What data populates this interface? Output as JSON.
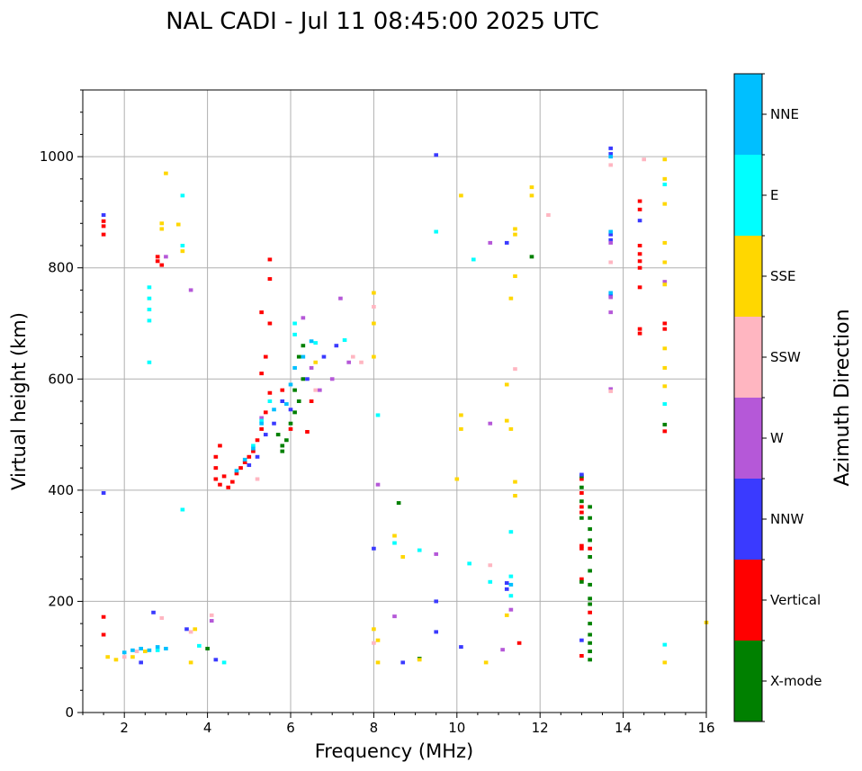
{
  "chart_data": {
    "type": "scatter",
    "title": "NAL CADI - Jul 11 08:45:00 2025 UTC",
    "xlabel": "Frequency (MHz)",
    "ylabel": "Virtual height (km)",
    "xlim": [
      1,
      16
    ],
    "ylim": [
      0,
      1120
    ],
    "xticks": [
      2,
      4,
      6,
      8,
      10,
      12,
      14,
      16
    ],
    "yticks": [
      0,
      200,
      400,
      600,
      800,
      1000
    ],
    "grid": true,
    "colorbar": {
      "label": "Azimuth Direction",
      "categories": [
        {
          "name": "X-mode",
          "color": "#008000"
        },
        {
          "name": "Vertical",
          "color": "#ff0000"
        },
        {
          "name": "NNW",
          "color": "#3a3aff"
        },
        {
          "name": "W",
          "color": "#b558d8"
        },
        {
          "name": "SSW",
          "color": "#ffb6c1"
        },
        {
          "name": "SSE",
          "color": "#ffd700"
        },
        {
          "name": "E",
          "color": "#00ffff"
        },
        {
          "name": "NNE",
          "color": "#00bfff"
        }
      ]
    },
    "series": [
      {
        "name": "Vertical",
        "points": [
          [
            1.5,
            172
          ],
          [
            1.5,
            140
          ],
          [
            1.5,
            860
          ],
          [
            1.5,
            875
          ],
          [
            1.5,
            884
          ],
          [
            2.8,
            812
          ],
          [
            2.8,
            820
          ],
          [
            2.9,
            805
          ],
          [
            4.2,
            420
          ],
          [
            4.2,
            440
          ],
          [
            4.2,
            460
          ],
          [
            4.3,
            480
          ],
          [
            4.3,
            410
          ],
          [
            4.4,
            425
          ],
          [
            4.5,
            405
          ],
          [
            4.6,
            415
          ],
          [
            4.7,
            430
          ],
          [
            4.8,
            440
          ],
          [
            4.9,
            450
          ],
          [
            5.0,
            460
          ],
          [
            5.1,
            470
          ],
          [
            5.2,
            490
          ],
          [
            5.3,
            510
          ],
          [
            5.4,
            540
          ],
          [
            5.5,
            575
          ],
          [
            5.3,
            610
          ],
          [
            5.4,
            640
          ],
          [
            5.5,
            700
          ],
          [
            5.3,
            720
          ],
          [
            5.5,
            780
          ],
          [
            5.5,
            815
          ],
          [
            5.8,
            580
          ],
          [
            6.0,
            510
          ],
          [
            6.4,
            505
          ],
          [
            6.5,
            560
          ],
          [
            13.0,
            420
          ],
          [
            13.0,
            395
          ],
          [
            13.0,
            370
          ],
          [
            13.0,
            360
          ],
          [
            13.0,
            300
          ],
          [
            13.0,
            295
          ],
          [
            13.0,
            240
          ],
          [
            13.0,
            102
          ],
          [
            13.2,
            295
          ],
          [
            13.2,
            180
          ],
          [
            14.4,
            920
          ],
          [
            14.4,
            905
          ],
          [
            14.4,
            840
          ],
          [
            14.4,
            825
          ],
          [
            14.4,
            812
          ],
          [
            14.4,
            800
          ],
          [
            14.4,
            765
          ],
          [
            14.4,
            690
          ],
          [
            14.4,
            682
          ],
          [
            15.0,
            700
          ],
          [
            15.0,
            690
          ],
          [
            15.0,
            506
          ],
          [
            11.5,
            125
          ]
        ]
      },
      {
        "name": "X-mode",
        "points": [
          [
            13.2,
            370
          ],
          [
            13.2,
            350
          ],
          [
            13.2,
            330
          ],
          [
            13.2,
            310
          ],
          [
            13.2,
            280
          ],
          [
            13.2,
            255
          ],
          [
            13.2,
            230
          ],
          [
            13.2,
            205
          ],
          [
            13.2,
            195
          ],
          [
            13.2,
            160
          ],
          [
            13.2,
            140
          ],
          [
            13.2,
            125
          ],
          [
            13.2,
            110
          ],
          [
            13.2,
            95
          ],
          [
            13.0,
            425
          ],
          [
            13.0,
            405
          ],
          [
            13.0,
            380
          ],
          [
            13.0,
            350
          ],
          [
            13.0,
            235
          ],
          [
            5.8,
            470
          ],
          [
            5.8,
            480
          ],
          [
            5.9,
            490
          ],
          [
            5.7,
            500
          ],
          [
            6.0,
            520
          ],
          [
            6.1,
            540
          ],
          [
            6.2,
            560
          ],
          [
            6.1,
            580
          ],
          [
            6.3,
            600
          ],
          [
            6.2,
            640
          ],
          [
            6.3,
            660
          ],
          [
            4.0,
            115
          ],
          [
            8.6,
            377
          ],
          [
            9.1,
            97
          ],
          [
            11.8,
            820
          ],
          [
            15.0,
            518
          ]
        ]
      },
      {
        "name": "NNW",
        "points": [
          [
            1.5,
            395
          ],
          [
            1.5,
            895
          ],
          [
            2.4,
            90
          ],
          [
            2.7,
            180
          ],
          [
            3.5,
            150
          ],
          [
            4.2,
            95
          ],
          [
            5.0,
            445
          ],
          [
            5.2,
            460
          ],
          [
            5.4,
            500
          ],
          [
            5.6,
            520
          ],
          [
            5.8,
            560
          ],
          [
            6.0,
            545
          ],
          [
            6.4,
            600
          ],
          [
            6.8,
            640
          ],
          [
            7.1,
            660
          ],
          [
            8.0,
            295
          ],
          [
            8.7,
            90
          ],
          [
            9.5,
            1003
          ],
          [
            9.5,
            200
          ],
          [
            9.5,
            145
          ],
          [
            10.1,
            118
          ],
          [
            11.2,
            233
          ],
          [
            11.2,
            222
          ],
          [
            11.2,
            845
          ],
          [
            13.0,
            428
          ],
          [
            13.0,
            130
          ],
          [
            13.7,
            1015
          ],
          [
            13.7,
            1005
          ],
          [
            13.7,
            860
          ],
          [
            13.7,
            850
          ],
          [
            13.7,
            750
          ],
          [
            14.4,
            885
          ]
        ]
      },
      {
        "name": "W",
        "points": [
          [
            3.0,
            820
          ],
          [
            3.6,
            760
          ],
          [
            4.1,
            165
          ],
          [
            5.3,
            530
          ],
          [
            6.3,
            710
          ],
          [
            6.5,
            620
          ],
          [
            6.7,
            580
          ],
          [
            7.0,
            600
          ],
          [
            7.2,
            745
          ],
          [
            7.4,
            630
          ],
          [
            8.1,
            410
          ],
          [
            8.5,
            173
          ],
          [
            9.5,
            285
          ],
          [
            10.8,
            520
          ],
          [
            10.8,
            845
          ],
          [
            11.3,
            185
          ],
          [
            11.1,
            113
          ],
          [
            13.7,
            720
          ],
          [
            13.7,
            582
          ],
          [
            13.7,
            747
          ],
          [
            13.7,
            845
          ],
          [
            15.0,
            775
          ]
        ]
      },
      {
        "name": "SSW",
        "points": [
          [
            2.0,
            100
          ],
          [
            2.3,
            110
          ],
          [
            2.9,
            170
          ],
          [
            3.6,
            145
          ],
          [
            4.1,
            175
          ],
          [
            5.2,
            420
          ],
          [
            6.6,
            580
          ],
          [
            7.5,
            640
          ],
          [
            7.7,
            630
          ],
          [
            8.0,
            730
          ],
          [
            8.0,
            125
          ],
          [
            10.8,
            265
          ],
          [
            11.4,
            618
          ],
          [
            12.2,
            895
          ],
          [
            13.7,
            985
          ],
          [
            13.7,
            578
          ],
          [
            13.7,
            810
          ],
          [
            14.5,
            995
          ]
        ]
      },
      {
        "name": "SSE",
        "points": [
          [
            1.6,
            100
          ],
          [
            1.8,
            95
          ],
          [
            2.2,
            100
          ],
          [
            2.5,
            110
          ],
          [
            2.9,
            870
          ],
          [
            2.9,
            880
          ],
          [
            3.0,
            970
          ],
          [
            3.3,
            878
          ],
          [
            3.4,
            830
          ],
          [
            3.7,
            150
          ],
          [
            3.6,
            90
          ],
          [
            8.0,
            755
          ],
          [
            8.0,
            700
          ],
          [
            8.0,
            640
          ],
          [
            8.0,
            150
          ],
          [
            8.1,
            130
          ],
          [
            8.1,
            90
          ],
          [
            8.5,
            318
          ],
          [
            8.7,
            280
          ],
          [
            9.1,
            95
          ],
          [
            10.0,
            420
          ],
          [
            10.1,
            535
          ],
          [
            10.1,
            510
          ],
          [
            10.1,
            930
          ],
          [
            10.7,
            90
          ],
          [
            11.2,
            590
          ],
          [
            11.2,
            525
          ],
          [
            11.3,
            510
          ],
          [
            11.3,
            745
          ],
          [
            11.4,
            785
          ],
          [
            11.4,
            870
          ],
          [
            11.4,
            860
          ],
          [
            11.4,
            415
          ],
          [
            11.4,
            390
          ],
          [
            11.8,
            945
          ],
          [
            11.8,
            930
          ],
          [
            11.2,
            175
          ],
          [
            15.0,
            995
          ],
          [
            15.0,
            960
          ],
          [
            15.0,
            915
          ],
          [
            15.0,
            845
          ],
          [
            15.0,
            810
          ],
          [
            15.0,
            770
          ],
          [
            15.0,
            655
          ],
          [
            15.0,
            620
          ],
          [
            15.0,
            587
          ],
          [
            15.0,
            90
          ],
          [
            16.0,
            162
          ],
          [
            6.6,
            630
          ]
        ]
      },
      {
        "name": "E",
        "points": [
          [
            2.6,
            765
          ],
          [
            2.6,
            745
          ],
          [
            2.6,
            725
          ],
          [
            2.6,
            705
          ],
          [
            2.6,
            630
          ],
          [
            2.8,
            112
          ],
          [
            3.4,
            930
          ],
          [
            3.4,
            840
          ],
          [
            3.4,
            365
          ],
          [
            3.8,
            120
          ],
          [
            4.4,
            90
          ],
          [
            5.1,
            480
          ],
          [
            5.3,
            525
          ],
          [
            5.5,
            560
          ],
          [
            6.1,
            700
          ],
          [
            6.1,
            680
          ],
          [
            6.6,
            665
          ],
          [
            7.3,
            670
          ],
          [
            8.1,
            535
          ],
          [
            8.5,
            305
          ],
          [
            9.1,
            292
          ],
          [
            9.5,
            865
          ],
          [
            10.3,
            268
          ],
          [
            10.4,
            815
          ],
          [
            10.8,
            235
          ],
          [
            11.3,
            325
          ],
          [
            11.3,
            245
          ],
          [
            11.3,
            210
          ],
          [
            15.0,
            950
          ],
          [
            15.0,
            555
          ],
          [
            15.0,
            122
          ]
        ]
      },
      {
        "name": "NNE",
        "points": [
          [
            2.0,
            108
          ],
          [
            2.2,
            112
          ],
          [
            2.4,
            115
          ],
          [
            2.6,
            112
          ],
          [
            2.8,
            118
          ],
          [
            3.0,
            115
          ],
          [
            4.7,
            435
          ],
          [
            4.9,
            455
          ],
          [
            5.1,
            475
          ],
          [
            5.3,
            520
          ],
          [
            5.6,
            545
          ],
          [
            5.9,
            555
          ],
          [
            6.0,
            590
          ],
          [
            6.1,
            620
          ],
          [
            6.3,
            640
          ],
          [
            6.5,
            668
          ],
          [
            13.7,
            1000
          ],
          [
            13.7,
            865
          ],
          [
            13.7,
            755
          ],
          [
            11.3,
            230
          ]
        ]
      }
    ]
  }
}
